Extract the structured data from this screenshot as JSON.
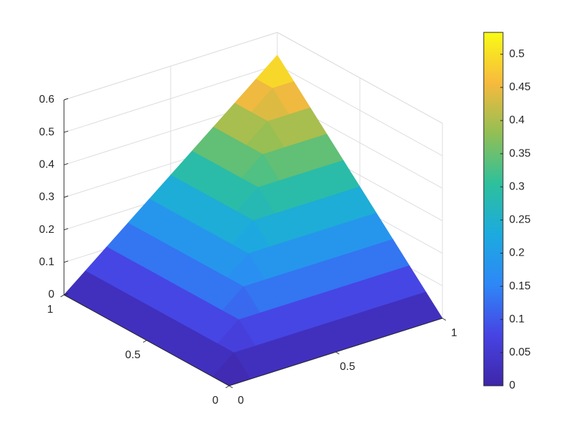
{
  "chart_data": {
    "type": "surface",
    "x": [
      0,
      0.1,
      0.2,
      0.3,
      0.4,
      0.5,
      0.6,
      0.7,
      0.8,
      0.9,
      1
    ],
    "y": [
      0,
      0.1,
      0.2,
      0.3,
      0.4,
      0.5,
      0.6,
      0.7,
      0.8,
      0.9,
      1
    ],
    "z": [
      [
        0,
        0,
        0,
        0,
        0,
        0,
        0,
        0,
        0,
        0,
        0
      ],
      [
        0,
        0.053,
        0.053,
        0.053,
        0.053,
        0.053,
        0.053,
        0.053,
        0.053,
        0.053,
        0.053
      ],
      [
        0,
        0.053,
        0.106,
        0.106,
        0.106,
        0.106,
        0.106,
        0.106,
        0.106,
        0.106,
        0.106
      ],
      [
        0,
        0.053,
        0.106,
        0.159,
        0.159,
        0.159,
        0.159,
        0.159,
        0.159,
        0.159,
        0.159
      ],
      [
        0,
        0.053,
        0.106,
        0.159,
        0.212,
        0.212,
        0.212,
        0.212,
        0.212,
        0.212,
        0.212
      ],
      [
        0,
        0.053,
        0.106,
        0.159,
        0.212,
        0.265,
        0.265,
        0.265,
        0.265,
        0.265,
        0.265
      ],
      [
        0,
        0.053,
        0.106,
        0.159,
        0.212,
        0.265,
        0.318,
        0.318,
        0.318,
        0.318,
        0.318
      ],
      [
        0,
        0.053,
        0.106,
        0.159,
        0.212,
        0.265,
        0.318,
        0.371,
        0.371,
        0.371,
        0.371
      ],
      [
        0,
        0.053,
        0.106,
        0.159,
        0.212,
        0.265,
        0.318,
        0.371,
        0.424,
        0.424,
        0.424
      ],
      [
        0,
        0.053,
        0.106,
        0.159,
        0.212,
        0.265,
        0.318,
        0.371,
        0.424,
        0.477,
        0.477
      ],
      [
        0,
        0.053,
        0.106,
        0.159,
        0.212,
        0.265,
        0.318,
        0.371,
        0.424,
        0.477,
        0.53
      ]
    ],
    "xlim": [
      0,
      1
    ],
    "ylim": [
      0,
      1
    ],
    "zlim": [
      0,
      0.6
    ],
    "xticks": [
      0,
      0.5,
      1
    ],
    "yticks": [
      0,
      0.5,
      1
    ],
    "zticks": [
      0,
      0.1,
      0.2,
      0.3,
      0.4,
      0.5,
      0.6
    ],
    "clim": [
      0,
      0.533
    ],
    "cticks": [
      0,
      0.05,
      0.1,
      0.15,
      0.2,
      0.25,
      0.3,
      0.35,
      0.4,
      0.45,
      0.5
    ],
    "colormap": [
      "#3e26a8",
      "#4743e3",
      "#2e87f7",
      "#1caadf",
      "#2dc09c",
      "#92bf54",
      "#f7ba3d",
      "#f9fb15"
    ],
    "grid": true
  }
}
